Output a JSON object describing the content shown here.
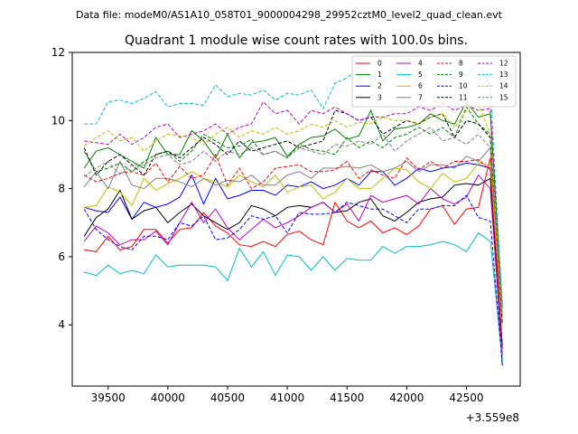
{
  "header": {
    "datafile": "Data file: modeM0/AS1A10_058T01_9000004298_29952cztM0_level2_quad_clean.evt"
  },
  "chart_data": {
    "type": "line",
    "title": "Quadrant 1 module wise count rates with 100.0s bins.",
    "xlabel": "",
    "ylabel": "",
    "x_offset_label": "+3.559e8",
    "xlim": [
      39200,
      42950
    ],
    "ylim": [
      2.2,
      12
    ],
    "xticks": [
      39500,
      40000,
      40500,
      41000,
      41500,
      42000,
      42500
    ],
    "xtick_labels": [
      "39500",
      "40000",
      "40500",
      "41000",
      "41500",
      "42000",
      "42500"
    ],
    "yticks": [
      4,
      6,
      8,
      10,
      12
    ],
    "ytick_labels": [
      "4",
      "6",
      "8",
      "10",
      "12"
    ],
    "x": [
      39300,
      39400,
      39500,
      39600,
      39700,
      39800,
      39900,
      40000,
      40100,
      40200,
      40300,
      40400,
      40500,
      40600,
      40700,
      40800,
      40900,
      41000,
      41100,
      41200,
      41300,
      41400,
      41500,
      41600,
      41700,
      41800,
      41900,
      42000,
      42100,
      42200,
      42300,
      42400,
      42500,
      42600,
      42700,
      42800
    ],
    "legend_placement": "upper right",
    "series": [
      {
        "name": "0",
        "color": "#ff0000",
        "dash": "solid",
        "values": [
          6.2,
          6.15,
          6.6,
          6.2,
          6.3,
          6.8,
          6.8,
          6.4,
          6.8,
          6.85,
          7.3,
          6.9,
          6.7,
          6.35,
          6.3,
          6.45,
          6.3,
          6.65,
          6.75,
          6.5,
          6.35,
          7.6,
          7.05,
          6.85,
          7.05,
          6.7,
          6.85,
          6.65,
          6.9,
          7.4,
          7.5,
          6.95,
          7.4,
          7.45,
          8.9,
          3.3
        ]
      },
      {
        "name": "1",
        "color": "#008000",
        "dash": "solid",
        "values": [
          8.6,
          9.1,
          9.2,
          9.0,
          8.8,
          8.6,
          9.5,
          9.0,
          9.0,
          9.7,
          9.4,
          8.9,
          9.6,
          8.9,
          9.35,
          9.4,
          9.5,
          8.95,
          9.3,
          9.5,
          9.55,
          9.75,
          9.45,
          9.55,
          10.3,
          9.4,
          9.75,
          9.8,
          9.9,
          10.2,
          10.0,
          9.9,
          10.55,
          10.1,
          10.2,
          4.5
        ]
      },
      {
        "name": "2",
        "color": "#0000ff",
        "dash": "solid",
        "values": [
          7.45,
          7.35,
          7.3,
          7.75,
          7.1,
          7.6,
          7.45,
          7.55,
          7.75,
          8.4,
          7.55,
          8.3,
          7.7,
          7.8,
          7.95,
          7.95,
          7.8,
          8.1,
          8.05,
          8.2,
          8.0,
          8.1,
          8.3,
          8.1,
          8.5,
          8.5,
          8.1,
          8.3,
          8.6,
          8.5,
          8.6,
          8.65,
          8.75,
          8.7,
          8.6,
          2.8
        ]
      },
      {
        "name": "3",
        "color": "#000000",
        "dash": "solid",
        "values": [
          6.6,
          7.15,
          7.4,
          7.95,
          7.1,
          7.35,
          7.45,
          7.0,
          7.3,
          7.55,
          7.2,
          7.0,
          6.8,
          7.0,
          7.5,
          7.4,
          7.2,
          7.45,
          7.5,
          7.45,
          7.6,
          7.3,
          7.35,
          7.6,
          7.7,
          7.2,
          7.05,
          7.3,
          7.6,
          7.7,
          7.75,
          8.1,
          8.15,
          8.1,
          8.3,
          3.4
        ]
      },
      {
        "name": "4",
        "color": "#bf00bf",
        "dash": "solid",
        "values": [
          6.45,
          6.9,
          6.7,
          6.35,
          6.5,
          6.5,
          6.75,
          6.35,
          7.0,
          7.6,
          7.0,
          7.4,
          6.85,
          6.5,
          6.8,
          7.1,
          6.85,
          7.0,
          7.2,
          7.45,
          7.6,
          7.3,
          7.55,
          7.05,
          7.8,
          7.6,
          7.7,
          7.8,
          7.55,
          8.0,
          7.7,
          7.55,
          7.75,
          8.4,
          8.0,
          3.1
        ]
      },
      {
        "name": "5",
        "color": "#00bfbf",
        "dash": "solid",
        "values": [
          5.55,
          5.45,
          5.75,
          5.5,
          5.6,
          5.5,
          6.05,
          5.7,
          5.75,
          5.75,
          5.75,
          5.7,
          5.3,
          6.25,
          5.7,
          6.15,
          5.45,
          6.05,
          6.0,
          5.6,
          6.0,
          5.6,
          5.95,
          5.9,
          5.9,
          6.3,
          6.1,
          6.3,
          6.3,
          6.35,
          6.45,
          6.35,
          6.15,
          6.7,
          6.45,
          3.0
        ]
      },
      {
        "name": "6",
        "color": "#bfbf00",
        "dash": "solid",
        "values": [
          7.45,
          7.5,
          8.05,
          7.9,
          7.5,
          8.3,
          7.95,
          8.15,
          8.3,
          8.5,
          8.3,
          8.2,
          8.05,
          8.4,
          8.2,
          8.05,
          8.4,
          7.9,
          8.05,
          8.1,
          7.7,
          7.9,
          8.3,
          8.0,
          8.0,
          8.3,
          8.6,
          8.55,
          8.2,
          8.0,
          8.45,
          8.2,
          8.3,
          8.75,
          8.7,
          4.0
        ]
      },
      {
        "name": "7",
        "color": "#808080",
        "dash": "solid",
        "values": [
          8.05,
          8.5,
          8.0,
          8.8,
          8.1,
          8.0,
          8.3,
          8.3,
          8.2,
          8.05,
          8.3,
          8.1,
          8.25,
          8.2,
          8.4,
          8.1,
          8.1,
          8.4,
          8.5,
          8.3,
          8.6,
          8.6,
          8.65,
          8.6,
          8.7,
          8.5,
          8.6,
          8.8,
          8.5,
          8.7,
          8.7,
          8.6,
          8.95,
          8.8,
          9.2,
          4.3
        ]
      },
      {
        "name": "8",
        "color": "#ff0000",
        "dash": "dashed",
        "values": [
          8.4,
          8.2,
          8.3,
          8.45,
          8.5,
          8.4,
          8.75,
          8.2,
          8.65,
          8.3,
          8.4,
          9.0,
          8.1,
          8.6,
          8.0,
          8.2,
          8.6,
          8.65,
          8.7,
          8.5,
          8.5,
          8.55,
          8.8,
          8.3,
          8.55,
          8.4,
          8.3,
          8.9,
          8.55,
          8.8,
          8.6,
          8.8,
          8.8,
          8.85,
          8.55,
          3.3
        ]
      },
      {
        "name": "9",
        "color": "#008000",
        "dash": "dashed",
        "values": [
          9.1,
          8.5,
          8.6,
          8.75,
          8.5,
          8.8,
          9.0,
          9.1,
          8.8,
          9.1,
          9.6,
          9.4,
          9.2,
          9.25,
          9.45,
          9.0,
          9.1,
          8.9,
          9.3,
          9.15,
          9.1,
          9.0,
          9.5,
          9.2,
          9.4,
          9.2,
          9.5,
          9.6,
          9.8,
          9.6,
          9.8,
          9.5,
          10.4,
          9.9,
          9.6,
          4.2
        ]
      },
      {
        "name": "10",
        "color": "#0000ff",
        "dash": "dashed",
        "values": [
          7.4,
          6.8,
          6.5,
          6.3,
          6.2,
          6.6,
          6.6,
          6.5,
          7.0,
          6.9,
          7.2,
          6.5,
          6.55,
          6.8,
          7.2,
          7.1,
          7.2,
          6.7,
          7.3,
          7.25,
          7.25,
          7.3,
          7.6,
          7.5,
          7.4,
          7.4,
          7.2,
          7.0,
          7.4,
          7.4,
          7.5,
          7.5,
          7.8,
          7.15,
          7.05,
          2.8
        ]
      },
      {
        "name": "11",
        "color": "#000000",
        "dash": "dashed",
        "values": [
          9.2,
          8.4,
          8.8,
          9.0,
          8.7,
          8.4,
          9.0,
          9.1,
          8.9,
          9.2,
          9.5,
          9.3,
          9.0,
          9.4,
          9.1,
          9.2,
          9.3,
          9.4,
          9.2,
          9.3,
          9.4,
          10.3,
          10.2,
          10.0,
          10.1,
          9.6,
          9.8,
          10.0,
          9.9,
          10.1,
          10.2,
          9.5,
          10.0,
          9.9,
          9.5,
          4.0
        ]
      },
      {
        "name": "12",
        "color": "#bf00bf",
        "dash": "dashed",
        "values": [
          9.4,
          9.35,
          9.3,
          9.6,
          9.3,
          9.5,
          9.8,
          9.9,
          9.5,
          9.6,
          9.7,
          9.9,
          9.6,
          9.8,
          9.9,
          10.55,
          10.2,
          10.3,
          9.9,
          10.3,
          10.2,
          10.4,
          10.2,
          10.0,
          10.1,
          10.1,
          10.2,
          10.2,
          10.4,
          10.3,
          10.5,
          10.3,
          10.45,
          10.3,
          10.35,
          4.6
        ]
      },
      {
        "name": "13",
        "color": "#00bfbf",
        "dash": "dashed",
        "values": [
          9.9,
          9.9,
          10.55,
          10.6,
          10.5,
          10.65,
          10.85,
          10.4,
          10.5,
          10.5,
          10.45,
          11.05,
          10.7,
          10.8,
          10.75,
          10.9,
          10.6,
          10.8,
          10.75,
          10.9,
          10.35,
          11.1,
          11.25,
          11.55,
          11.3,
          11.1,
          11.5,
          11.25,
          11.4,
          11.55,
          11.3,
          11.5,
          11.3,
          11.7,
          11.0,
          4.5
        ]
      },
      {
        "name": "14",
        "color": "#bfbf00",
        "dash": "dashed",
        "values": [
          9.25,
          9.5,
          9.7,
          9.4,
          9.5,
          9.1,
          9.4,
          9.6,
          9.55,
          9.5,
          9.3,
          9.6,
          9.8,
          9.5,
          9.7,
          9.6,
          9.8,
          9.6,
          9.7,
          9.9,
          9.8,
          10.0,
          9.8,
          9.95,
          9.9,
          10.1,
          10.0,
          10.0,
          9.9,
          10.1,
          10.2,
          9.8,
          10.3,
          10.5,
          9.6,
          4.3
        ]
      },
      {
        "name": "15",
        "color": "#808080",
        "dash": "dashed",
        "values": [
          8.35,
          8.6,
          8.8,
          8.4,
          8.7,
          8.7,
          8.9,
          9.0,
          8.7,
          8.8,
          9.1,
          8.8,
          9.1,
          9.0,
          9.2,
          9.0,
          9.1,
          8.9,
          9.2,
          9.1,
          9.0,
          9.3,
          9.25,
          9.4,
          9.3,
          9.6,
          9.1,
          9.4,
          9.6,
          9.8,
          9.4,
          9.5,
          9.3,
          9.6,
          9.2,
          4.2
        ]
      }
    ]
  }
}
